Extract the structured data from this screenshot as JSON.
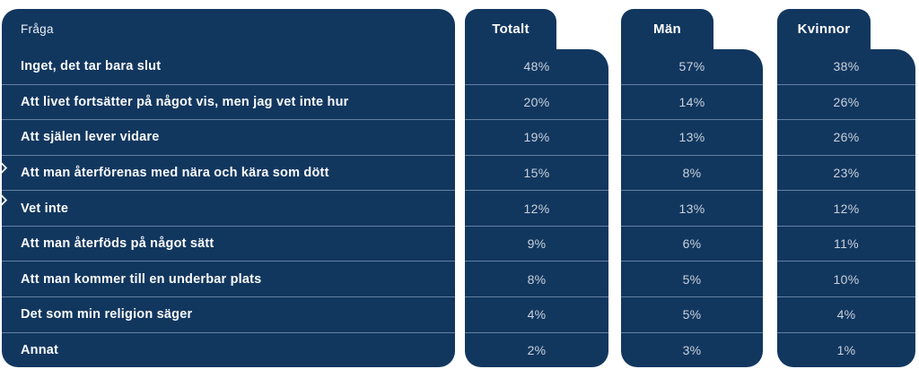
{
  "colors": {
    "panel_navy": "#12375F",
    "separator": "#A8C0D8",
    "value_text": "#C9D2DD",
    "label_text": "#FBFCFD",
    "page_background": "#FFFFFF"
  },
  "table": {
    "question_header": "Fråga",
    "rows": [
      "Inget, det tar bara slut",
      "Att livet fortsätter på något vis, men jag vet inte hur",
      "Att själen lever vidare",
      "Att man återförenas med nära och kära som dött",
      "Vet inte",
      "Att man återföds på något sätt",
      "Att man kommer till en underbar plats",
      "Det som min religion säger",
      "Annat"
    ],
    "columns": [
      {
        "label": "Totalt",
        "values": [
          "48%",
          "20%",
          "19%",
          "15%",
          "12%",
          "9%",
          "8%",
          "4%",
          "2%"
        ]
      },
      {
        "label": "Män",
        "values": [
          "57%",
          "14%",
          "13%",
          "8%",
          "13%",
          "6%",
          "5%",
          "5%",
          "3%"
        ]
      },
      {
        "label": "Kvinnor",
        "values": [
          "38%",
          "26%",
          "26%",
          "23%",
          "12%",
          "11%",
          "10%",
          "4%",
          "1%"
        ]
      }
    ]
  },
  "chart_data": {
    "type": "table",
    "title": "",
    "row_header_label": "Fråga",
    "value_unit": "%",
    "categories": [
      "Inget, det tar bara slut",
      "Att livet fortsätter på något vis, men jag vet inte hur",
      "Att själen lever vidare",
      "Att man återförenas med nära och kära som dött",
      "Vet inte",
      "Att man återföds på något sätt",
      "Att man kommer till en underbar plats",
      "Det som min religion säger",
      "Annat"
    ],
    "series": [
      {
        "name": "Totalt",
        "values": [
          48,
          20,
          19,
          15,
          12,
          9,
          8,
          4,
          2
        ]
      },
      {
        "name": "Män",
        "values": [
          57,
          14,
          13,
          8,
          13,
          6,
          5,
          5,
          3
        ]
      },
      {
        "name": "Kvinnor",
        "values": [
          38,
          26,
          26,
          23,
          12,
          11,
          10,
          4,
          1
        ]
      }
    ]
  }
}
